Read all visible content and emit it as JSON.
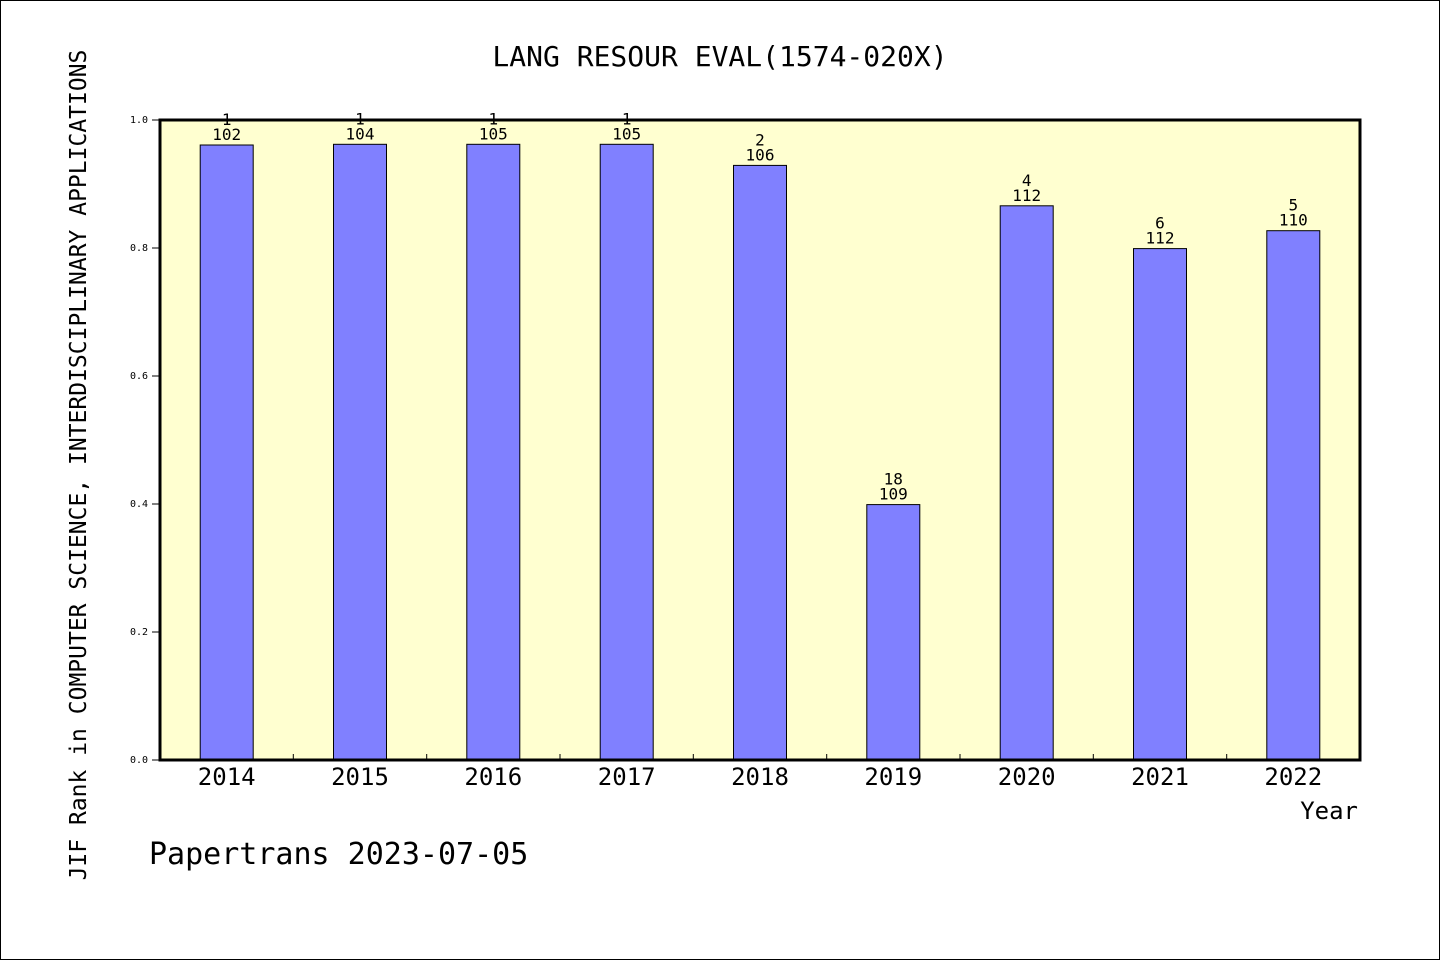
{
  "chart_data": {
    "type": "bar",
    "title": "LANG RESOUR EVAL(1574-020X)",
    "xlabel": "Year",
    "ylabel": "JIF Rank in COMPUTER SCIENCE, INTERDISCIPLINARY APPLICATIONS",
    "ylim": [
      0,
      1.0
    ],
    "yticks": [
      "0.0",
      "0.2",
      "0.4",
      "0.6",
      "0.8",
      "1.0"
    ],
    "categories": [
      "2014",
      "2015",
      "2016",
      "2017",
      "2018",
      "2019",
      "2020",
      "2021",
      "2022"
    ],
    "values": [
      0.961,
      0.962,
      0.962,
      0.962,
      0.929,
      0.399,
      0.866,
      0.799,
      0.827
    ],
    "rank_labels": [
      "1",
      "1",
      "1",
      "1",
      "2",
      "18",
      "4",
      "6",
      "5"
    ],
    "total_labels": [
      "102",
      "104",
      "105",
      "105",
      "106",
      "109",
      "112",
      "112",
      "110"
    ],
    "grid": false,
    "legend": "none",
    "colors": {
      "bar": "#8080ff",
      "plot_background": "#ffffd0",
      "axis": "#000000"
    }
  },
  "footer": {
    "credit": "Papertrans 2023-07-05"
  }
}
